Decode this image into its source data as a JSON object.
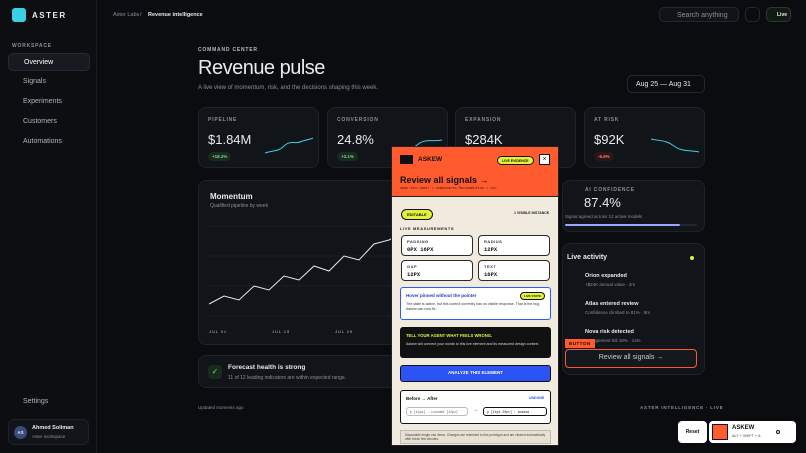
{
  "brand": "ASTER",
  "sidebar": {
    "section": "WORKSPACE",
    "nav": [
      "Overview",
      "Signals",
      "Experiments",
      "Customers",
      "Automations"
    ],
    "settings": "Settings",
    "user": {
      "initials": "AS",
      "name": "Ahmed Soliman",
      "org": "Aster workspace"
    }
  },
  "topbar": {
    "breadcrumb": [
      "Aster Labs",
      "Revenue intelligence"
    ],
    "search": "Search anything",
    "live": "Live"
  },
  "header": {
    "eyebrow": "COMMAND CENTER",
    "title": "Revenue pulse",
    "subtitle": "A live view of momentum, risk, and the decisions shaping this week.",
    "date_range": "Aug 25 — Aug 31"
  },
  "kpis": [
    {
      "label": "PIPELINE",
      "value": "$1.84M",
      "delta": "+18.2%"
    },
    {
      "label": "CONVERSION",
      "value": "24.8%",
      "delta": "+3.1%"
    },
    {
      "label": "EXPANSION",
      "value": "$284K"
    },
    {
      "label": "AT RISK",
      "value": "$92K",
      "delta": "-6.8%"
    }
  ],
  "momentum": {
    "title": "Momentum",
    "subtitle": "Qualified pipeline by week",
    "x_labels": [
      "JUL 01",
      "JUL 15",
      "JUL 29"
    ]
  },
  "forecast": {
    "title": "Forecast health is strong",
    "text": "11 of 12 leading indicators are within expected range."
  },
  "footer": {
    "updated": "Updated moments ago",
    "brand": "ASTER INTELLIGENCE · LIVE"
  },
  "confidence": {
    "label": "AI CONFIDENCE",
    "value": "87.4%",
    "note": "Signal agreed across 12 active models"
  },
  "activity": {
    "title": "Live activity",
    "items": [
      {
        "title": "Orion expanded",
        "meta": "+$24K annual value · 2m"
      },
      {
        "title": "Atlas entered review",
        "meta": "Confidence climbed to 81% · 8m"
      },
      {
        "title": "Nova risk detected",
        "meta": "Engagement fell 18% · 14m"
      }
    ],
    "button": "Review all signals →",
    "badge": "BUTTON"
  },
  "askew": {
    "name": "ASKEW",
    "evidence": "LIVE EVIDENCE",
    "element": "Review all signals →",
    "selector": "span.btn-label > components.ReviewButton > div",
    "editable": "EDITABLE",
    "instances": "1 VISIBLE INSTANCE",
    "measurements_title": "LIVE MEASUREMENTS",
    "measurements": [
      {
        "label": "PADDING",
        "value": "0PX 16PX"
      },
      {
        "label": "RADIUS",
        "value": "12PX"
      },
      {
        "label": "GAP",
        "value": "12PX"
      },
      {
        "label": "TEXT",
        "value": "16PX"
      }
    ],
    "hover": {
      "title": "Hover pinned without the pointer",
      "tag": "LIVE STATE",
      "text": "The state is active, but this control currently has no visible response. That is the bug Askew can now fix."
    },
    "tell": {
      "title": "TELL YOUR AGENT WHAT FEELS WRONG.",
      "text": "Askew will connect your words to this live element and its measured design context."
    },
    "analyze": "ANALYZE THIS ELEMENT",
    "diff": {
      "title": "Before → After",
      "action": "UNDONE",
      "before": "p [14px] → rounded [12px]",
      "after": "p [14px 20px] · shadow"
    },
    "disclaimer": "Disposable single-use demo. Changes are restricted to this prototype and are cleared automatically after these few minutes."
  },
  "widget": {
    "reset": "Reset",
    "name": "ASKEW",
    "shortcut": "ALT + SHIFT + A"
  }
}
